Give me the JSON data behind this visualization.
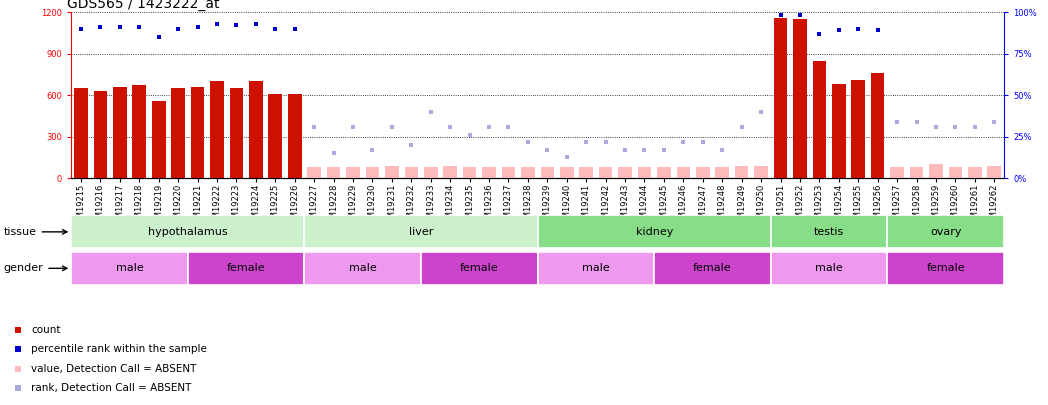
{
  "title": "GDS565 / 1423222_at",
  "samples": [
    "GSM19215",
    "GSM19216",
    "GSM19217",
    "GSM19218",
    "GSM19219",
    "GSM19220",
    "GSM19221",
    "GSM19222",
    "GSM19223",
    "GSM19224",
    "GSM19225",
    "GSM19226",
    "GSM19227",
    "GSM19228",
    "GSM19229",
    "GSM19230",
    "GSM19231",
    "GSM19232",
    "GSM19233",
    "GSM19234",
    "GSM19235",
    "GSM19236",
    "GSM19237",
    "GSM19238",
    "GSM19239",
    "GSM19240",
    "GSM19241",
    "GSM19242",
    "GSM19243",
    "GSM19244",
    "GSM19245",
    "GSM19246",
    "GSM19247",
    "GSM19248",
    "GSM19249",
    "GSM19250",
    "GSM19251",
    "GSM19252",
    "GSM19253",
    "GSM19254",
    "GSM19255",
    "GSM19256",
    "GSM19257",
    "GSM19258",
    "GSM19259",
    "GSM19260",
    "GSM19261",
    "GSM19262"
  ],
  "count": [
    650,
    630,
    660,
    670,
    560,
    650,
    660,
    700,
    650,
    700,
    610,
    610,
    80,
    80,
    80,
    80,
    90,
    80,
    80,
    90,
    80,
    80,
    80,
    80,
    80,
    80,
    80,
    80,
    80,
    80,
    80,
    80,
    80,
    80,
    90,
    90,
    1160,
    1150,
    850,
    680,
    710,
    760,
    80,
    80,
    100,
    80,
    80,
    90
  ],
  "count_absent": [
    false,
    false,
    false,
    false,
    false,
    false,
    false,
    false,
    false,
    false,
    false,
    false,
    true,
    true,
    true,
    true,
    true,
    true,
    true,
    true,
    true,
    true,
    true,
    true,
    true,
    true,
    true,
    true,
    true,
    true,
    true,
    true,
    true,
    true,
    true,
    true,
    false,
    false,
    false,
    false,
    false,
    false,
    true,
    true,
    true,
    true,
    true,
    true
  ],
  "rank": [
    90,
    91,
    91,
    91,
    85,
    90,
    91,
    93,
    92,
    93,
    90,
    90,
    31,
    15,
    31,
    17,
    31,
    20,
    40,
    31,
    26,
    31,
    31,
    22,
    17,
    13,
    22,
    22,
    17,
    17,
    17,
    22,
    22,
    17,
    31,
    40,
    98,
    98,
    87,
    89,
    90,
    89,
    34,
    34,
    31,
    31,
    31,
    34
  ],
  "rank_absent": [
    false,
    false,
    false,
    false,
    false,
    false,
    false,
    false,
    false,
    false,
    false,
    false,
    true,
    true,
    true,
    true,
    true,
    true,
    true,
    true,
    true,
    true,
    true,
    true,
    true,
    true,
    true,
    true,
    true,
    true,
    true,
    true,
    true,
    true,
    true,
    true,
    false,
    false,
    false,
    false,
    false,
    false,
    true,
    true,
    true,
    true,
    true,
    true
  ],
  "tissues": [
    {
      "name": "hypothalamus",
      "start": 0,
      "end": 11,
      "light": true
    },
    {
      "name": "liver",
      "start": 12,
      "end": 23,
      "light": true
    },
    {
      "name": "kidney",
      "start": 24,
      "end": 35,
      "light": false
    },
    {
      "name": "testis",
      "start": 36,
      "end": 41,
      "light": false
    },
    {
      "name": "ovary",
      "start": 42,
      "end": 47,
      "light": false
    }
  ],
  "genders": [
    {
      "name": "male",
      "start": 0,
      "end": 5,
      "dark": false
    },
    {
      "name": "female",
      "start": 6,
      "end": 11,
      "dark": true
    },
    {
      "name": "male",
      "start": 12,
      "end": 17,
      "dark": false
    },
    {
      "name": "female",
      "start": 18,
      "end": 23,
      "dark": true
    },
    {
      "name": "male",
      "start": 24,
      "end": 29,
      "dark": false
    },
    {
      "name": "female",
      "start": 30,
      "end": 35,
      "dark": true
    },
    {
      "name": "male",
      "start": 36,
      "end": 41,
      "dark": false
    },
    {
      "name": "female",
      "start": 42,
      "end": 47,
      "dark": true
    }
  ],
  "tissue_light_color": "#ccf0cc",
  "tissue_dark_color": "#88dd88",
  "gender_male_color": "#ee99ee",
  "gender_female_color": "#cc44cc",
  "ylim_left": [
    0,
    1200
  ],
  "ylim_right": [
    0,
    100
  ],
  "yticks_left": [
    0,
    300,
    600,
    900,
    1200
  ],
  "yticks_right": [
    0,
    25,
    50,
    75,
    100
  ],
  "bar_color": "#cc1100",
  "bar_absent_color": "#ffbbbb",
  "dot_color": "#0000cc",
  "dot_absent_color": "#aaaadd",
  "bg_color": "#ffffff",
  "title_fontsize": 10,
  "tick_fontsize": 6,
  "label_fontsize": 8,
  "annot_fontsize": 7.5
}
